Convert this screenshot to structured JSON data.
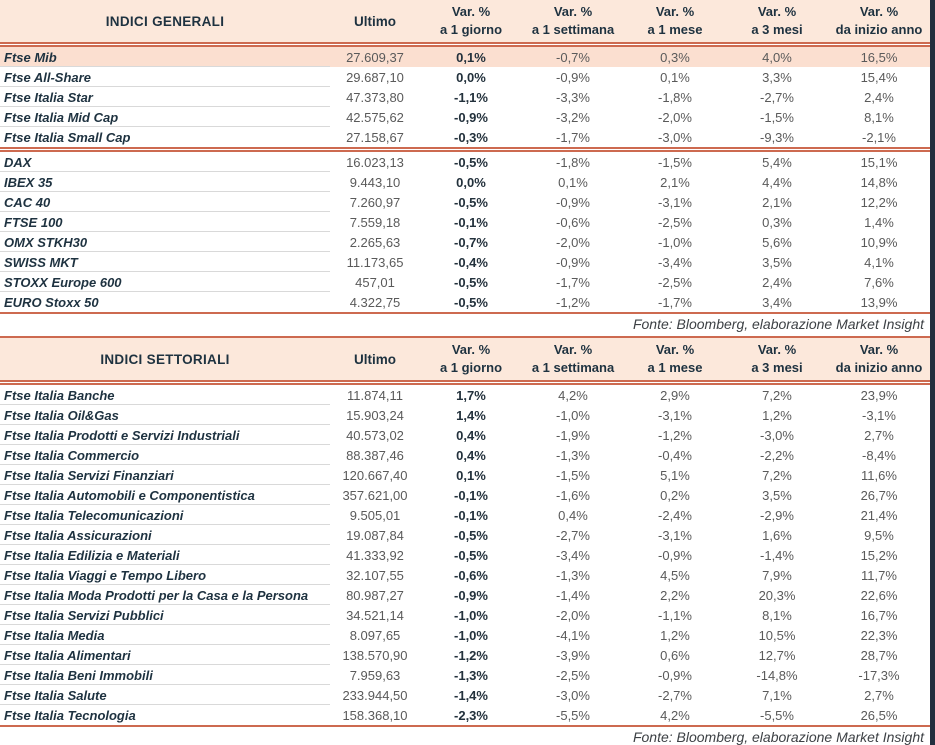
{
  "colors": {
    "accent_line": "#cd6a50",
    "header_bg": "#fce8db",
    "highlight_row_bg": "#fbdfd0",
    "text_dark": "#1e3240",
    "text_gray": "#5a5a5a",
    "right_edge_bar": "#22303f"
  },
  "tables": [
    {
      "title": "INDICI GENERALI",
      "col_ultimo": "Ultimo",
      "var_cols": [
        [
          "Var. %",
          "a 1 giorno"
        ],
        [
          "Var. %",
          "a 1 settimana"
        ],
        [
          "Var. %",
          "a 1 mese"
        ],
        [
          "Var. %",
          "a 3 mesi"
        ],
        [
          "Var. %",
          "da inizio anno"
        ]
      ],
      "groups": [
        {
          "rows": [
            {
              "name": "Ftse Mib",
              "ultimo": "27.609,37",
              "vars": [
                "0,1%",
                "-0,7%",
                "0,3%",
                "4,0%",
                "16,5%"
              ],
              "highlight": true
            },
            {
              "name": "Ftse All-Share",
              "ultimo": "29.687,10",
              "vars": [
                "0,0%",
                "-0,9%",
                "0,1%",
                "3,3%",
                "15,4%"
              ]
            },
            {
              "name": "Ftse Italia Star",
              "ultimo": "47.373,80",
              "vars": [
                "-1,1%",
                "-3,3%",
                "-1,8%",
                "-2,7%",
                "2,4%"
              ]
            },
            {
              "name": "Ftse Italia Mid Cap",
              "ultimo": "42.575,62",
              "vars": [
                "-0,9%",
                "-3,2%",
                "-2,0%",
                "-1,5%",
                "8,1%"
              ]
            },
            {
              "name": "Ftse Italia Small Cap",
              "ultimo": "27.158,67",
              "vars": [
                "-0,3%",
                "-1,7%",
                "-3,0%",
                "-9,3%",
                "-2,1%"
              ]
            }
          ]
        },
        {
          "rows": [
            {
              "name": "DAX",
              "ultimo": "16.023,13",
              "vars": [
                "-0,5%",
                "-1,8%",
                "-1,5%",
                "5,4%",
                "15,1%"
              ]
            },
            {
              "name": "IBEX 35",
              "ultimo": "9.443,10",
              "vars": [
                "0,0%",
                "0,1%",
                "2,1%",
                "4,4%",
                "14,8%"
              ]
            },
            {
              "name": "CAC 40",
              "ultimo": "7.260,97",
              "vars": [
                "-0,5%",
                "-0,9%",
                "-3,1%",
                "2,1%",
                "12,2%"
              ]
            },
            {
              "name": "FTSE 100",
              "ultimo": "7.559,18",
              "vars": [
                "-0,1%",
                "-0,6%",
                "-2,5%",
                "0,3%",
                "1,4%"
              ]
            },
            {
              "name": "OMX STKH30",
              "ultimo": "2.265,63",
              "vars": [
                "-0,7%",
                "-2,0%",
                "-1,0%",
                "5,6%",
                "10,9%"
              ]
            },
            {
              "name": "SWISS MKT",
              "ultimo": "11.173,65",
              "vars": [
                "-0,4%",
                "-0,9%",
                "-3,4%",
                "3,5%",
                "4,1%"
              ]
            },
            {
              "name": "STOXX Europe 600",
              "ultimo": "457,01",
              "vars": [
                "-0,5%",
                "-1,7%",
                "-2,5%",
                "2,4%",
                "7,6%"
              ]
            },
            {
              "name": "EURO Stoxx 50",
              "ultimo": "4.322,75",
              "vars": [
                "-0,5%",
                "-1,2%",
                "-1,7%",
                "3,4%",
                "13,9%"
              ]
            }
          ]
        }
      ],
      "fonte": "Fonte: Bloomberg, elaborazione Market Insight"
    },
    {
      "title": "INDICI SETTORIALI",
      "col_ultimo": "Ultimo",
      "var_cols": [
        [
          "Var. %",
          "a 1 giorno"
        ],
        [
          "Var. %",
          "a 1 settimana"
        ],
        [
          "Var. %",
          "a 1 mese"
        ],
        [
          "Var. %",
          "a 3 mesi"
        ],
        [
          "Var. %",
          "da inizio anno"
        ]
      ],
      "groups": [
        {
          "rows": [
            {
              "name": "Ftse Italia Banche",
              "ultimo": "11.874,11",
              "vars": [
                "1,7%",
                "4,2%",
                "2,9%",
                "7,2%",
                "23,9%"
              ]
            },
            {
              "name": "Ftse Italia Oil&Gas",
              "ultimo": "15.903,24",
              "vars": [
                "1,4%",
                "-1,0%",
                "-3,1%",
                "1,2%",
                "-3,1%"
              ]
            },
            {
              "name": "Ftse Italia Prodotti e Servizi Industriali",
              "ultimo": "40.573,02",
              "vars": [
                "0,4%",
                "-1,9%",
                "-1,2%",
                "-3,0%",
                "2,7%"
              ]
            },
            {
              "name": "Ftse Italia Commercio",
              "ultimo": "88.387,46",
              "vars": [
                "0,4%",
                "-1,3%",
                "-0,4%",
                "-2,2%",
                "-8,4%"
              ]
            },
            {
              "name": "Ftse Italia Servizi Finanziari",
              "ultimo": "120.667,40",
              "vars": [
                "0,1%",
                "-1,5%",
                "5,1%",
                "7,2%",
                "11,6%"
              ]
            },
            {
              "name": "Ftse Italia Automobili e Componentistica",
              "ultimo": "357.621,00",
              "vars": [
                "-0,1%",
                "-1,6%",
                "0,2%",
                "3,5%",
                "26,7%"
              ]
            },
            {
              "name": "Ftse Italia Telecomunicazioni",
              "ultimo": "9.505,01",
              "vars": [
                "-0,1%",
                "0,4%",
                "-2,4%",
                "-2,9%",
                "21,4%"
              ]
            },
            {
              "name": "Ftse Italia Assicurazioni",
              "ultimo": "19.087,84",
              "vars": [
                "-0,5%",
                "-2,7%",
                "-3,1%",
                "1,6%",
                "9,5%"
              ]
            },
            {
              "name": "Ftse Italia Edilizia e Materiali",
              "ultimo": "41.333,92",
              "vars": [
                "-0,5%",
                "-3,4%",
                "-0,9%",
                "-1,4%",
                "15,2%"
              ]
            },
            {
              "name": "Ftse Italia Viaggi e Tempo Libero",
              "ultimo": "32.107,55",
              "vars": [
                "-0,6%",
                "-1,3%",
                "4,5%",
                "7,9%",
                "11,7%"
              ]
            },
            {
              "name": "Ftse Italia Moda Prodotti per la Casa e la Persona",
              "ultimo": "80.987,27",
              "vars": [
                "-0,9%",
                "-1,4%",
                "2,2%",
                "20,3%",
                "22,6%"
              ]
            },
            {
              "name": "Ftse Italia Servizi Pubblici",
              "ultimo": "34.521,14",
              "vars": [
                "-1,0%",
                "-2,0%",
                "-1,1%",
                "8,1%",
                "16,7%"
              ]
            },
            {
              "name": "Ftse Italia Media",
              "ultimo": "8.097,65",
              "vars": [
                "-1,0%",
                "-4,1%",
                "1,2%",
                "10,5%",
                "22,3%"
              ]
            },
            {
              "name": "Ftse Italia Alimentari",
              "ultimo": "138.570,90",
              "vars": [
                "-1,2%",
                "-3,9%",
                "0,6%",
                "12,7%",
                "28,7%"
              ]
            },
            {
              "name": "Ftse Italia Beni Immobili",
              "ultimo": "7.959,63",
              "vars": [
                "-1,3%",
                "-2,5%",
                "-0,9%",
                "-14,8%",
                "-17,3%"
              ]
            },
            {
              "name": "Ftse Italia Salute",
              "ultimo": "233.944,50",
              "vars": [
                "-1,4%",
                "-3,0%",
                "-2,7%",
                "7,1%",
                "2,7%"
              ]
            },
            {
              "name": "Ftse Italia Tecnologia",
              "ultimo": "158.368,10",
              "vars": [
                "-2,3%",
                "-5,5%",
                "4,2%",
                "-5,5%",
                "26,5%"
              ]
            }
          ]
        }
      ],
      "fonte": "Fonte: Bloomberg, elaborazione Market Insight"
    }
  ]
}
